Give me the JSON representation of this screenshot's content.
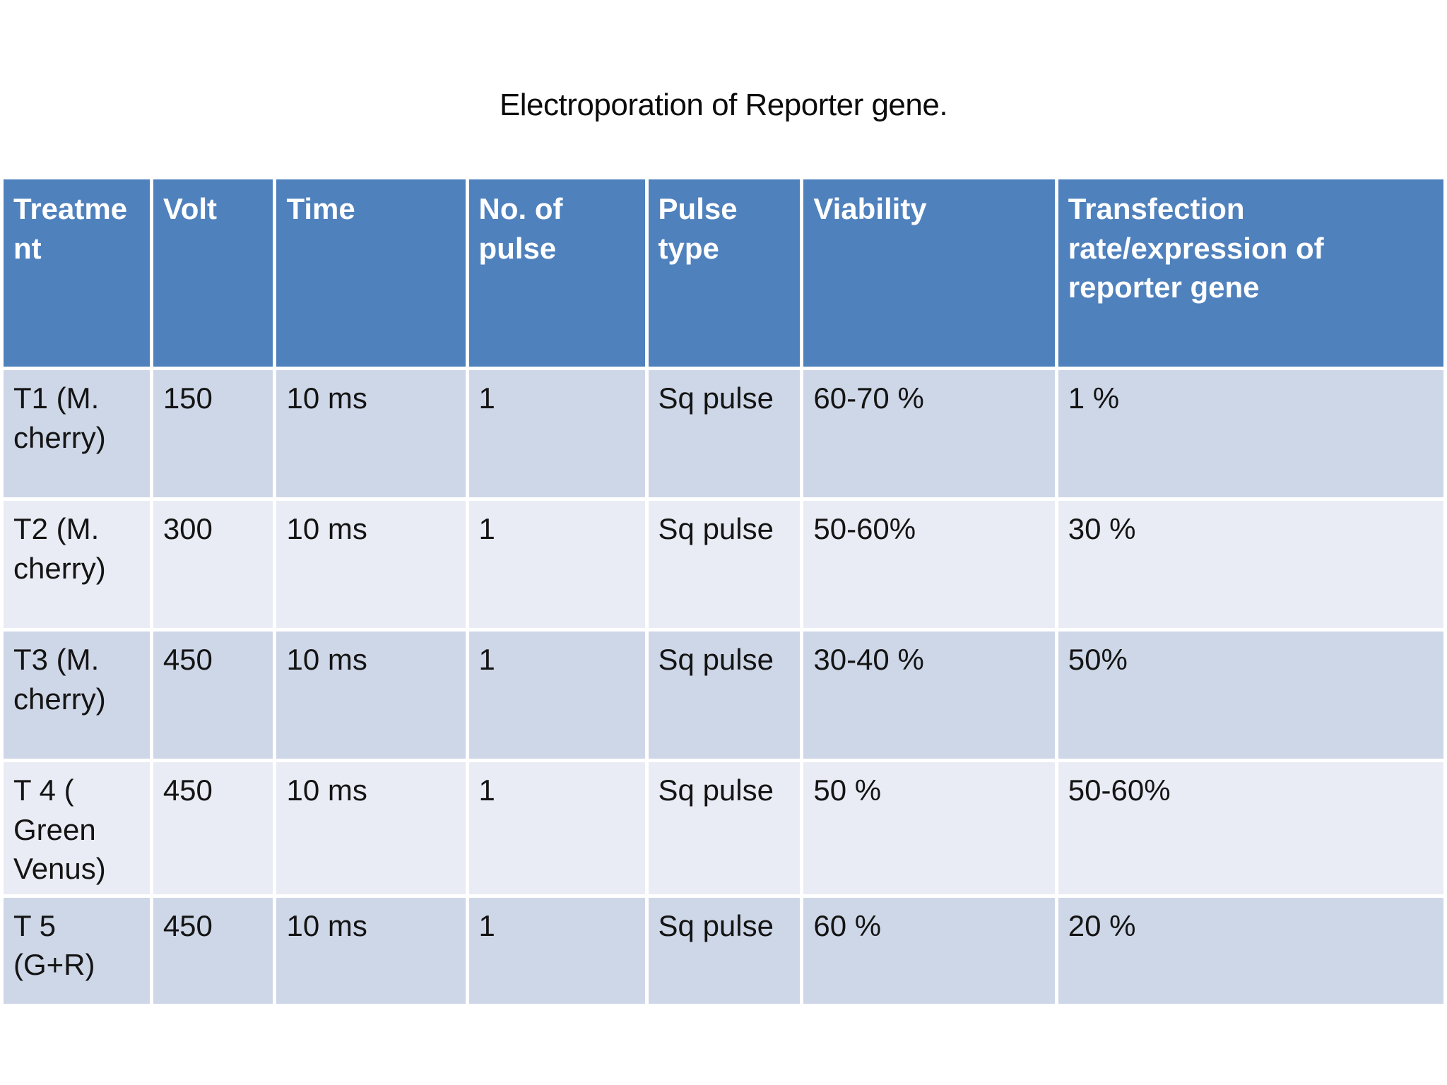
{
  "slide": {
    "title": "Electroporation of Reporter gene."
  },
  "table": {
    "headers": [
      "Treatment",
      "Volt",
      "Time",
      "No. of pulse",
      "Pulse type",
      "Viability",
      "Transfection rate/expression of reporter gene"
    ],
    "rows": [
      {
        "cells": [
          "T1 (M. cherry)",
          "150",
          "10 ms",
          "1",
          "Sq pulse",
          "60-70 %",
          "1 %"
        ]
      },
      {
        "cells": [
          "T2 (M. cherry)",
          "300",
          "10 ms",
          "1",
          "Sq pulse",
          "50-60%",
          "30 %"
        ]
      },
      {
        "cells": [
          "T3 (M. cherry)",
          "450",
          "10 ms",
          "1",
          "Sq pulse",
          "30-40 %",
          "50%"
        ]
      },
      {
        "cells": [
          "T 4 ( Green Venus)",
          "450",
          "10 ms",
          "1",
          "Sq pulse",
          "50 %",
          "50-60%"
        ]
      },
      {
        "cells": [
          "T 5 (G+R)",
          "450",
          "10 ms",
          "1",
          "Sq pulse",
          "60 %",
          "20 %"
        ]
      }
    ]
  },
  "colors": {
    "header_bg": "#4f81bd",
    "band_odd": "#ced7e7",
    "band_even": "#e9ecf4",
    "header_text": "#ffffff",
    "body_text": "#141414",
    "page_bg": "#ffffff"
  }
}
